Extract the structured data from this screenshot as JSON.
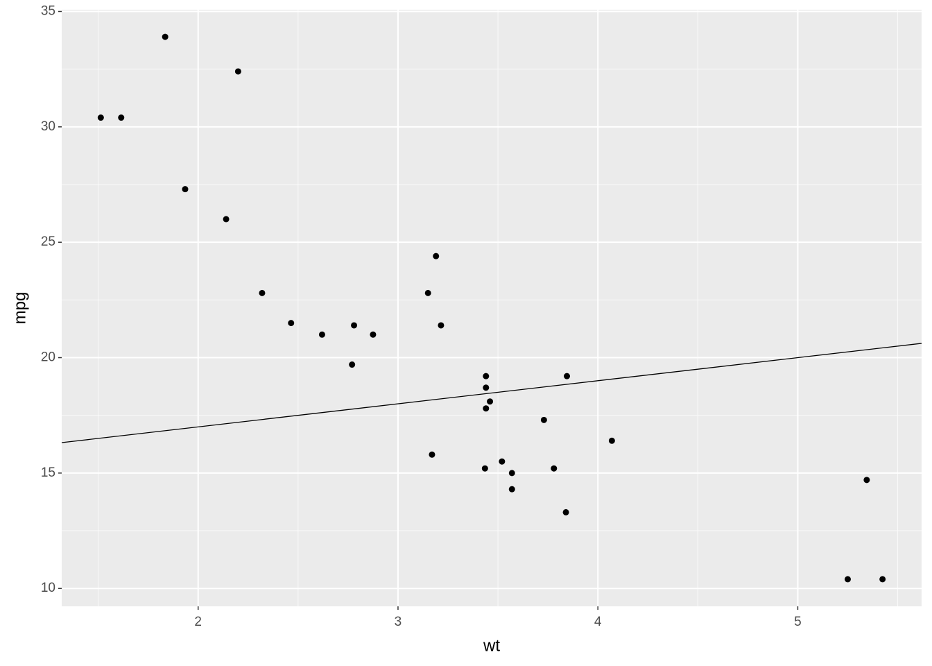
{
  "chart_data": {
    "type": "scatter",
    "x_label": "wt",
    "y_label": "mpg",
    "x": [
      2.62,
      2.875,
      2.32,
      3.215,
      3.44,
      3.46,
      3.57,
      3.19,
      3.15,
      3.44,
      3.44,
      4.07,
      3.73,
      3.78,
      5.25,
      5.424,
      5.345,
      2.2,
      1.615,
      1.835,
      2.465,
      3.52,
      3.435,
      3.84,
      3.845,
      1.935,
      2.14,
      1.513,
      3.17,
      2.77,
      3.57,
      2.78
    ],
    "series": [
      {
        "color": "#000000",
        "values": [
          21.0,
          21.0,
          22.8,
          21.4,
          18.7,
          18.1,
          14.3,
          24.4,
          22.8,
          19.2,
          17.8,
          16.4,
          17.3,
          15.2,
          10.4,
          10.4,
          14.7,
          32.4,
          30.4,
          33.9,
          21.5,
          15.5,
          15.2,
          13.3,
          19.2,
          27.3,
          26.0,
          30.4,
          15.8,
          19.7,
          15.0,
          21.4
        ]
      }
    ],
    "abline": {
      "intercept": 15,
      "slope": 1,
      "color": "#000000"
    },
    "xlim": [
      1.3175,
      5.6195
    ],
    "ylim": [
      9.225,
      35.075
    ],
    "xticks": [
      2,
      3,
      4,
      5
    ],
    "yticks": [
      10,
      15,
      20,
      25,
      30,
      35
    ],
    "xminor": [
      1.5,
      2.5,
      3.5,
      4.5,
      5.5
    ],
    "yminor": [
      12.5,
      17.5,
      22.5,
      27.5,
      32.5
    ],
    "grid": true
  }
}
